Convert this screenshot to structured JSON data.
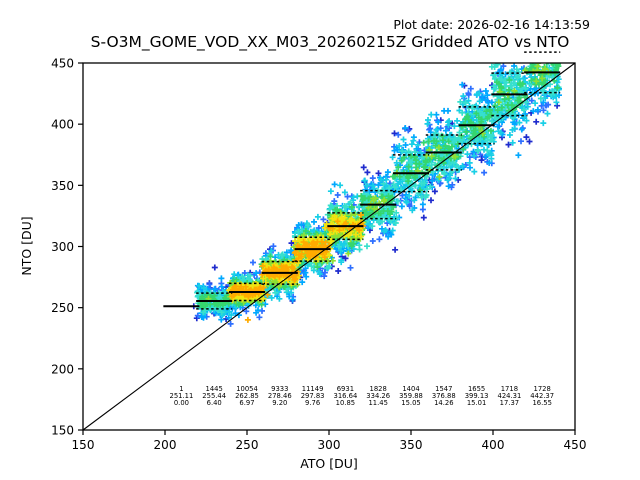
{
  "chart_data": {
    "type": "scatter",
    "title": "S-O3M_GOME_VOD_XX_M03_20260215Z Gridded ATO vs NTO",
    "plot_date": "Plot date: 2026-02-16 14:13:59",
    "xlabel": "ATO [DU]",
    "ylabel": "NTO [DU]",
    "xlim": [
      150,
      450
    ],
    "ylim": [
      150,
      450
    ],
    "x_ticks": [
      150,
      200,
      250,
      300,
      350,
      400,
      450
    ],
    "y_ticks": [
      150,
      200,
      250,
      300,
      350,
      400,
      450
    ],
    "grid": false,
    "legend": "none",
    "marker": "plus",
    "identity_line": {
      "x": [
        150,
        450
      ],
      "y": [
        150,
        450
      ],
      "color": "#000000"
    },
    "bin_width": 20,
    "bins": [
      {
        "x_center": 210,
        "count": 1,
        "mean_nto": 251.11,
        "std_nto": 0.0
      },
      {
        "x_center": 230,
        "count": 1445,
        "mean_nto": 255.44,
        "std_nto": 6.4
      },
      {
        "x_center": 250,
        "count": 10054,
        "mean_nto": 262.85,
        "std_nto": 6.97
      },
      {
        "x_center": 270,
        "count": 9333,
        "mean_nto": 278.46,
        "std_nto": 9.2
      },
      {
        "x_center": 290,
        "count": 11149,
        "mean_nto": 297.83,
        "std_nto": 9.76
      },
      {
        "x_center": 310,
        "count": 6931,
        "mean_nto": 316.64,
        "std_nto": 10.85
      },
      {
        "x_center": 330,
        "count": 1828,
        "mean_nto": 334.26,
        "std_nto": 11.45
      },
      {
        "x_center": 350,
        "count": 1404,
        "mean_nto": 359.88,
        "std_nto": 15.05
      },
      {
        "x_center": 370,
        "count": 1547,
        "mean_nto": 376.88,
        "std_nto": 14.26
      },
      {
        "x_center": 390,
        "count": 1655,
        "mean_nto": 399.13,
        "std_nto": 15.01
      },
      {
        "x_center": 410,
        "count": 1718,
        "mean_nto": 424.31,
        "std_nto": 17.37
      },
      {
        "x_center": 430,
        "count": 1728,
        "mean_nto": 442.37,
        "std_nto": 16.55
      }
    ],
    "density_colormap": [
      "#1f2bcd",
      "#2e6fff",
      "#00a8ff",
      "#19cfe6",
      "#37e0cd",
      "#35d66e",
      "#8fe032",
      "#f2e410",
      "#ffab00"
    ],
    "colors": {
      "axes": "#000000",
      "background": "#ffffff",
      "stat_lines": "#000000"
    }
  }
}
